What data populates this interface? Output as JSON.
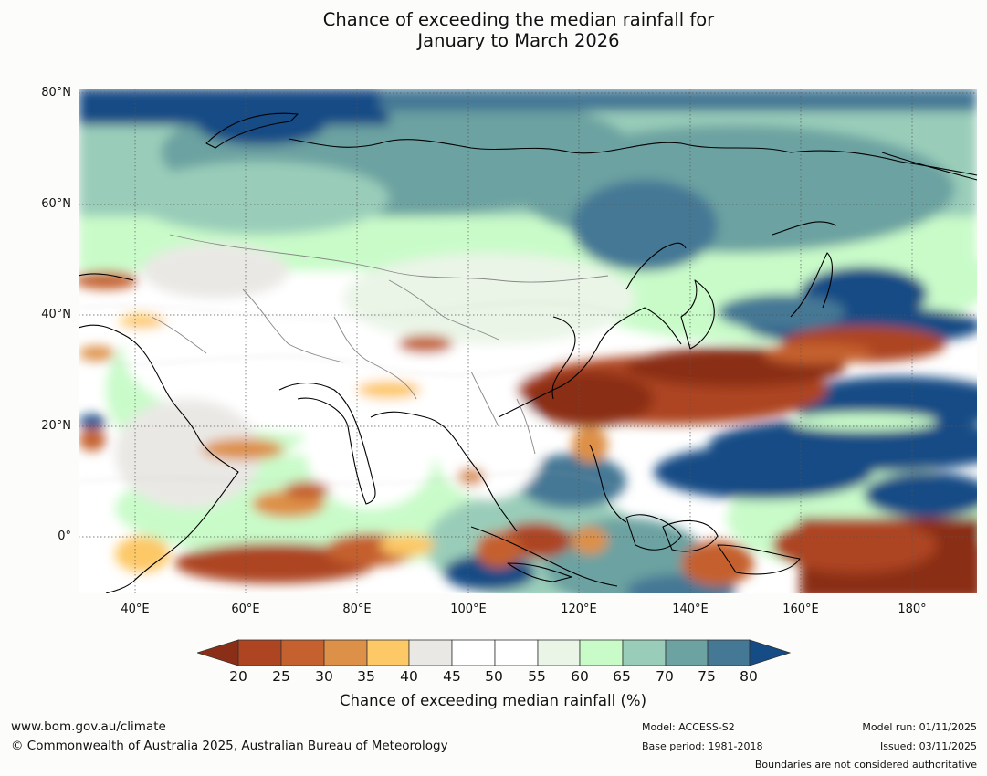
{
  "title_line1": "Chance of exceeding the median rainfall for",
  "title_line2": "January to March 2026",
  "map": {
    "lat_labels": [
      "80°N",
      "60°N",
      "40°N",
      "20°N",
      "0°"
    ],
    "lon_labels": [
      "40°E",
      "60°E",
      "80°E",
      "100°E",
      "120°E",
      "140°E",
      "160°E",
      "180°"
    ]
  },
  "colorbar": {
    "ticks": [
      "20",
      "25",
      "30",
      "35",
      "40",
      "45",
      "50",
      "55",
      "60",
      "65",
      "70",
      "75",
      "80"
    ],
    "colors": [
      "#8b2e17",
      "#ad4522",
      "#c5612e",
      "#dd9047",
      "#fdc866",
      "#eae8e5",
      "#ffffff",
      "#ffffff",
      "#eaf5e7",
      "#c9fbc9",
      "#9acdb9",
      "#6ca2a1",
      "#457895",
      "#154c85"
    ],
    "label": "Chance of exceeding median rainfall (%)"
  },
  "footer": {
    "website": "www.bom.gov.au/climate",
    "copyright": "© Commonwealth of Australia 2025, Australian Bureau of Meteorology",
    "model": "Model: ACCESS-S2",
    "base_period": "Base period: 1981-2018",
    "model_run": "Model run: 01/11/2025",
    "issued": "Issued: 03/11/2025",
    "boundaries_note": "Boundaries are not considered authoritative"
  }
}
